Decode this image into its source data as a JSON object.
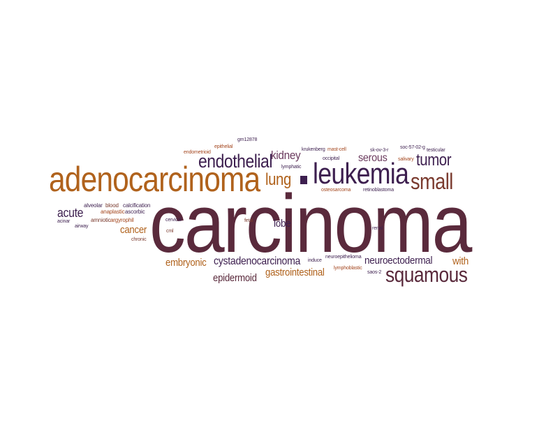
{
  "words": {
    "carcinoma": "carcinoma",
    "adenocarcinoma": "adenocarcinoma",
    "leukemia": "leukemia",
    "endothelial": "endothelial",
    "small": "small",
    "tumor": "tumor",
    "lung": "lung",
    "kidney": "kidney",
    "squamous": "squamous",
    "neuroectodermal": "neuroectodermal",
    "cystadenocarcinoma": "cystadenocarcinoma",
    "embryonic": "embryonic",
    "gastrointestinal": "gastrointestinal",
    "epidermoid": "epidermoid",
    "serous": "serous",
    "with": "with",
    "cancer": "cancer",
    "acute": "acute",
    "lobe": "lobe",
    "alveolar": "alveolar",
    "blood": "blood",
    "calcification": "calcification",
    "anaplastic": "anaplastic",
    "ascorbic": "ascorbic",
    "amniotic": "amniotic",
    "argyrophil": "argyrophil",
    "acinar": "acinar",
    "airway": "airway",
    "chronic": "chronic",
    "cervical": "cervical",
    "cml": "cml",
    "fetal": "fetal",
    "renal": "renal",
    "endometrioid": "endometrioid",
    "epithelial": "epithelial",
    "gm12878": "gm12878",
    "lymphatic": "lymphatic",
    "krukenberg": "krukenberg",
    "mast_cell": "mast-cell",
    "occipital": "occipital",
    "sk_ov_3_r": "sk-ov-3-r",
    "salivary": "salivary",
    "soc_57_02_g": "soc-57-02-g",
    "testicular": "testicular",
    "osteosarcoma": "osteosarcoma",
    "retinoblastoma": "retinoblastoma",
    "induce": "induce",
    "neuroepithelioma": "neuroepithelioma",
    "lymphoblastic": "lymphoblastic",
    "saos_2": "saos-2"
  }
}
